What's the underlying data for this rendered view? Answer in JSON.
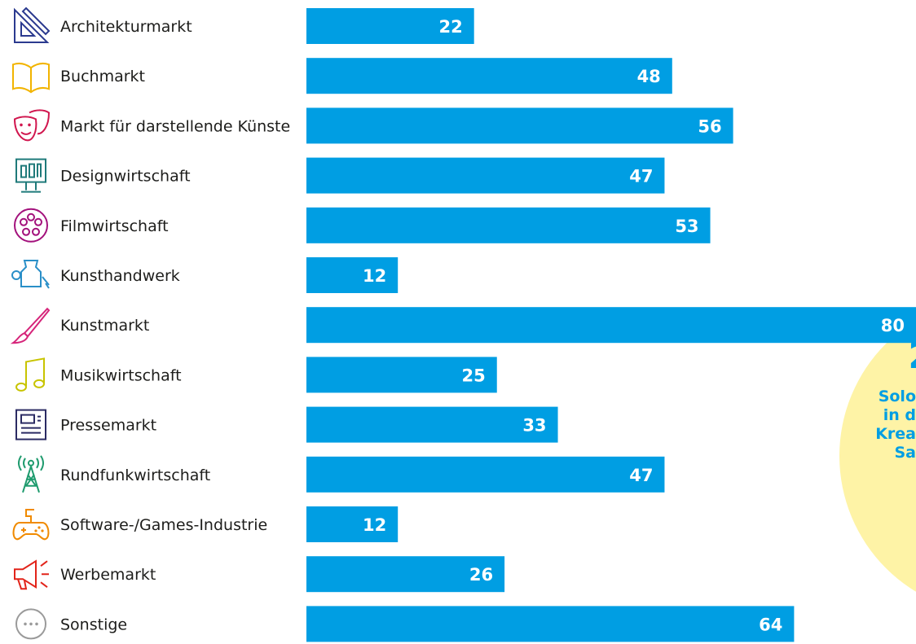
{
  "chart_data": {
    "type": "bar",
    "orientation": "horizontal",
    "categories": [
      "Architekturmarkt",
      "Buchmarkt",
      "Markt für darstellende Künste",
      "Designwirtschaft",
      "Filmwirtschaft",
      "Kunsthandwerk",
      "Kunstmarkt",
      "Musikwirtschaft",
      "Pressemarkt",
      "Rundfunkwirtschaft",
      "Software-/Games-Industrie",
      "Werbemarkt",
      "Sonstige"
    ],
    "values": [
      22,
      48,
      56,
      47,
      53,
      12,
      80,
      25,
      33,
      47,
      12,
      26,
      64
    ],
    "icons": [
      "architecture-icon",
      "book-icon",
      "theater-masks-icon",
      "design-monitor-icon",
      "film-reel-icon",
      "crafts-vase-icon",
      "paintbrush-icon",
      "music-note-icon",
      "newspaper-icon",
      "radio-tower-icon",
      "gamepad-icon",
      "megaphone-icon",
      "more-dots-icon"
    ],
    "icon_colors": [
      "#2b3a8f",
      "#f2b400",
      "#d1174f",
      "#1f7a7a",
      "#a3117c",
      "#2a8fc8",
      "#d6257a",
      "#c8c400",
      "#2b2b63",
      "#1f9b6e",
      "#f08a00",
      "#e2241a",
      "#9a9a9a"
    ],
    "bar_color": "#009ee3",
    "xlim": [
      0,
      80
    ],
    "grid": false,
    "legend": "none",
    "callout": {
      "number": "2",
      "lines": [
        "Solo",
        "in d",
        "Krea",
        "Sa"
      ],
      "background": "#fef3a6",
      "text_color": "#009ee3"
    }
  }
}
